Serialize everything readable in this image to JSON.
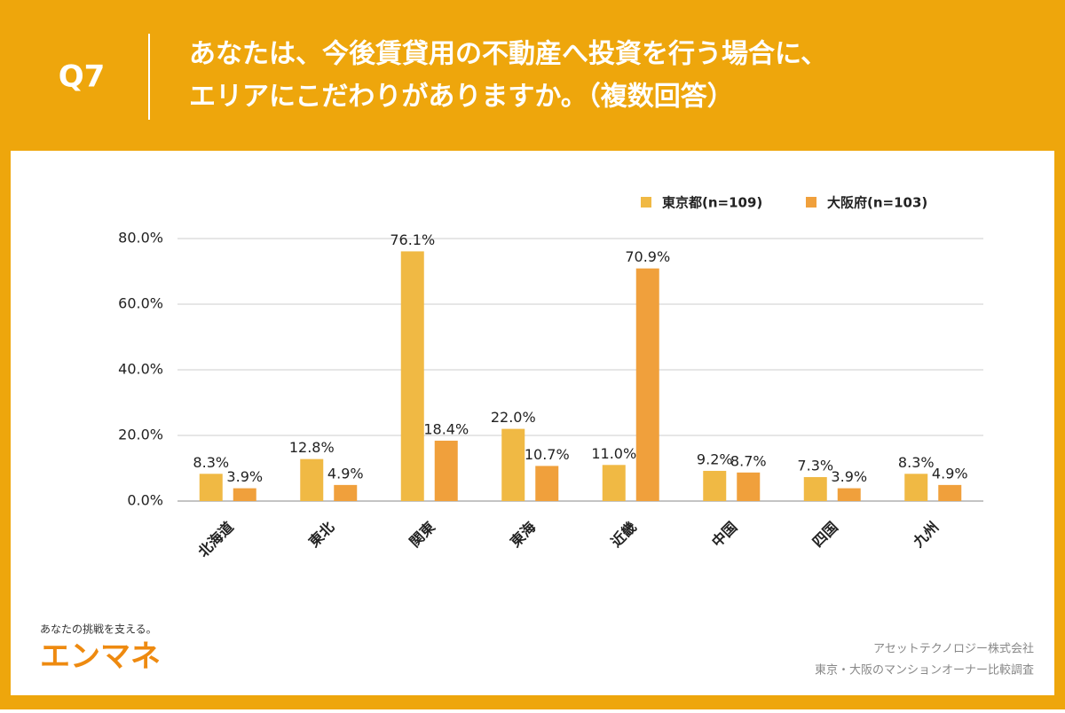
{
  "chart_data": {
    "type": "bar",
    "question": "Q7",
    "title": [
      "あなたは、今後賃貸用の不動産へ投資を行う場合に、",
      "エリアにこだわりがありますか。（複数回答）"
    ],
    "categories": [
      "北海道",
      "東北",
      "関東",
      "東海",
      "近畿",
      "中国",
      "四国",
      "九州"
    ],
    "series": [
      {
        "name": "東京都(n=109)",
        "color": "#f0b944",
        "values": [
          8.3,
          12.8,
          76.1,
          22.0,
          11.0,
          9.2,
          7.3,
          8.3
        ],
        "value_labels": [
          "8.3%",
          "12.8%",
          "76.1%",
          "22.0%",
          "11.0%",
          "9.2%",
          "7.3%",
          "8.3%"
        ]
      },
      {
        "name": "大阪府(n=103)",
        "color": "#f0a03c",
        "values": [
          3.9,
          4.9,
          18.4,
          10.7,
          70.9,
          8.7,
          3.9,
          4.9
        ],
        "value_labels": [
          "3.9%",
          "4.9%",
          "18.4%",
          "10.7%",
          "70.9%",
          "8.7%",
          "3.9%",
          "4.9%"
        ]
      }
    ],
    "ylim": [
      0,
      80
    ],
    "yticks": [
      {
        "value": 0,
        "label": "0.0%"
      },
      {
        "value": 20,
        "label": "20.0%"
      },
      {
        "value": 40,
        "label": "40.0%"
      },
      {
        "value": 60,
        "label": "60.0%"
      },
      {
        "value": 80,
        "label": "80.0%"
      }
    ],
    "grid": true,
    "legend": "top-right",
    "tagline": "あなたの挑戦を支える。",
    "logo": "エンマネ",
    "company": "アセットテクノロジー株式会社",
    "survey": "東京・大阪のマンションオーナー比較調査"
  }
}
